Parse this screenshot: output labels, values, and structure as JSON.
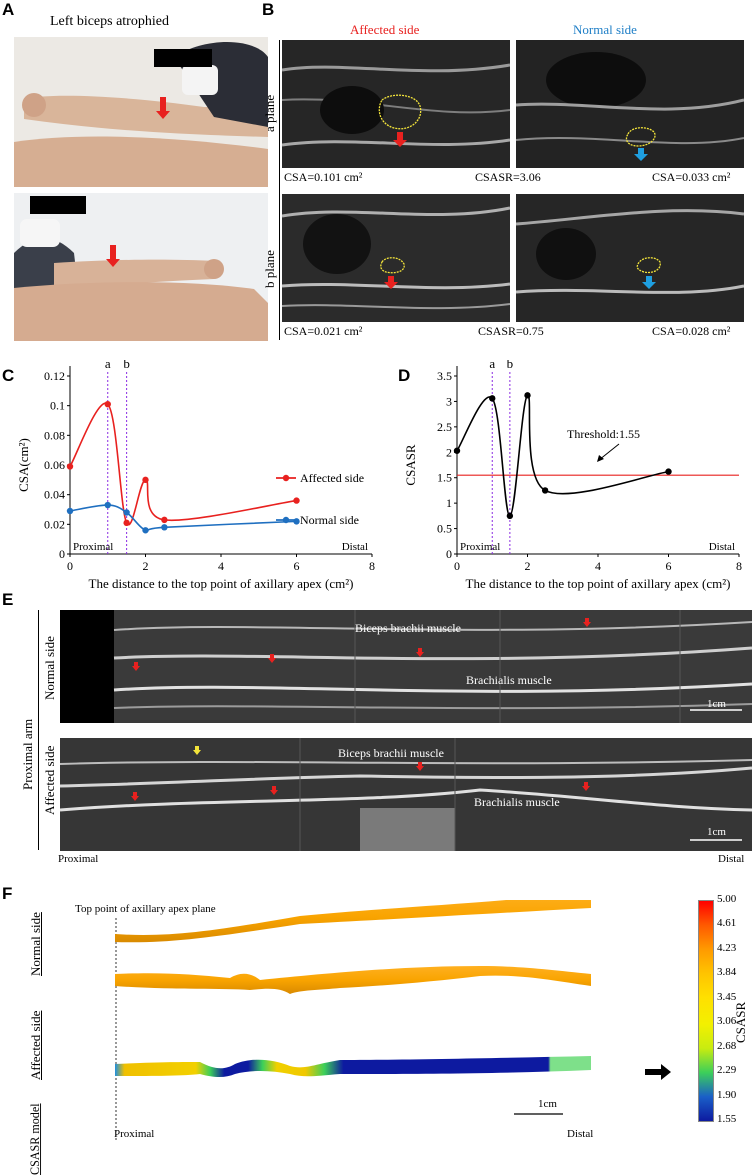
{
  "panels": {
    "A": "A",
    "B": "B",
    "C": "C",
    "D": "D",
    "E": "E",
    "F": "F"
  },
  "panelA": {
    "title": "Left biceps atrophied"
  },
  "panelB": {
    "col_affected": "Affected side",
    "col_normal": "Normal side",
    "row_a": "a plane",
    "row_b": "b plane",
    "a_csa_aff": "CSA=0.101 cm²",
    "a_csasr": "CSASR=3.06",
    "a_csa_norm": "CSA=0.033 cm²",
    "b_csa_aff": "CSA=0.021 cm²",
    "b_csasr": "CSASR=0.75",
    "b_csa_norm": "CSA=0.028 cm²",
    "colors": {
      "affected": "#e8211f",
      "normal": "#1f7fc7",
      "contour": "#f3e43a"
    }
  },
  "panelE": {
    "side_label": "Proximal arm",
    "normal_label": "Normal side",
    "affected_label": "Affected side",
    "biceps": "Biceps brachii muscle",
    "brachialis": "Brachialis muscle",
    "scale": "1cm",
    "proximal": "Proximal",
    "distal": "Distal"
  },
  "panelF": {
    "top_label": "Top point of axillary apex plane",
    "row_normal": "Normal side",
    "row_affected": "Affected side",
    "row_model": "CSASR model",
    "scale": "1cm",
    "proximal": "Proximal",
    "distal": "Distal",
    "colorbar_title": "CSASR",
    "colorbar_ticks": [
      "5.00",
      "4.61",
      "4.23",
      "3.84",
      "3.45",
      "3.06",
      "2.68",
      "2.29",
      "1.90",
      "1.55"
    ],
    "colorbar_colors": [
      "#ff0000",
      "#ff5a00",
      "#ff9a00",
      "#ffc400",
      "#ffe000",
      "#f3f000",
      "#c8ec10",
      "#3ccf5a",
      "#1a5fc8",
      "#0d1aa0"
    ]
  },
  "chart_data": [
    {
      "type": "line",
      "panel": "C",
      "title": "",
      "xlabel": "The distance to the top point of axillary apex (cm²)",
      "ylabel": "CSA(cm²)",
      "xlim": [
        0,
        8
      ],
      "ylim": [
        0,
        0.12
      ],
      "xticks": [
        "0",
        "2",
        "4",
        "6",
        "8"
      ],
      "yticks": [
        "0",
        "0.02",
        "0.04",
        "0.06",
        "0.08",
        "0.1",
        "0.12"
      ],
      "series": [
        {
          "name": "Affected side",
          "color": "#e8211f",
          "x": [
            0,
            1,
            1.5,
            2,
            2.5,
            6
          ],
          "y": [
            0.059,
            0.101,
            0.021,
            0.05,
            0.023,
            0.036
          ]
        },
        {
          "name": "Normal side",
          "color": "#1f6fc0",
          "x": [
            0,
            1,
            1.5,
            2,
            2.5,
            6
          ],
          "y": [
            0.029,
            0.033,
            0.028,
            0.016,
            0.018,
            0.022
          ]
        }
      ],
      "markers": [
        {
          "label": "a",
          "x": 1
        },
        {
          "label": "b",
          "x": 1.5
        }
      ],
      "annotations": [
        "Proximal",
        "Distal"
      ],
      "legend": "right"
    },
    {
      "type": "line",
      "panel": "D",
      "title": "",
      "xlabel": "The distance to the top point of axillary apex (cm²)",
      "ylabel": "CSASR",
      "xlim": [
        0,
        8
      ],
      "ylim": [
        0,
        3.5
      ],
      "xticks": [
        "0",
        "2",
        "4",
        "6",
        "8"
      ],
      "yticks": [
        "0",
        "0.5",
        "1",
        "1.5",
        "2",
        "2.5",
        "3",
        "3.5"
      ],
      "series": [
        {
          "name": "",
          "color": "#000000",
          "x": [
            0,
            1,
            1.5,
            2,
            2.5,
            6
          ],
          "y": [
            2.03,
            3.06,
            0.75,
            3.12,
            1.25,
            1.62
          ]
        }
      ],
      "threshold": {
        "label": "Threshold:1.55",
        "value": 1.55,
        "color": "#e8211f"
      },
      "markers": [
        {
          "label": "a",
          "x": 1
        },
        {
          "label": "b",
          "x": 1.5
        }
      ],
      "annotations": [
        "Proximal",
        "Distal"
      ]
    }
  ]
}
